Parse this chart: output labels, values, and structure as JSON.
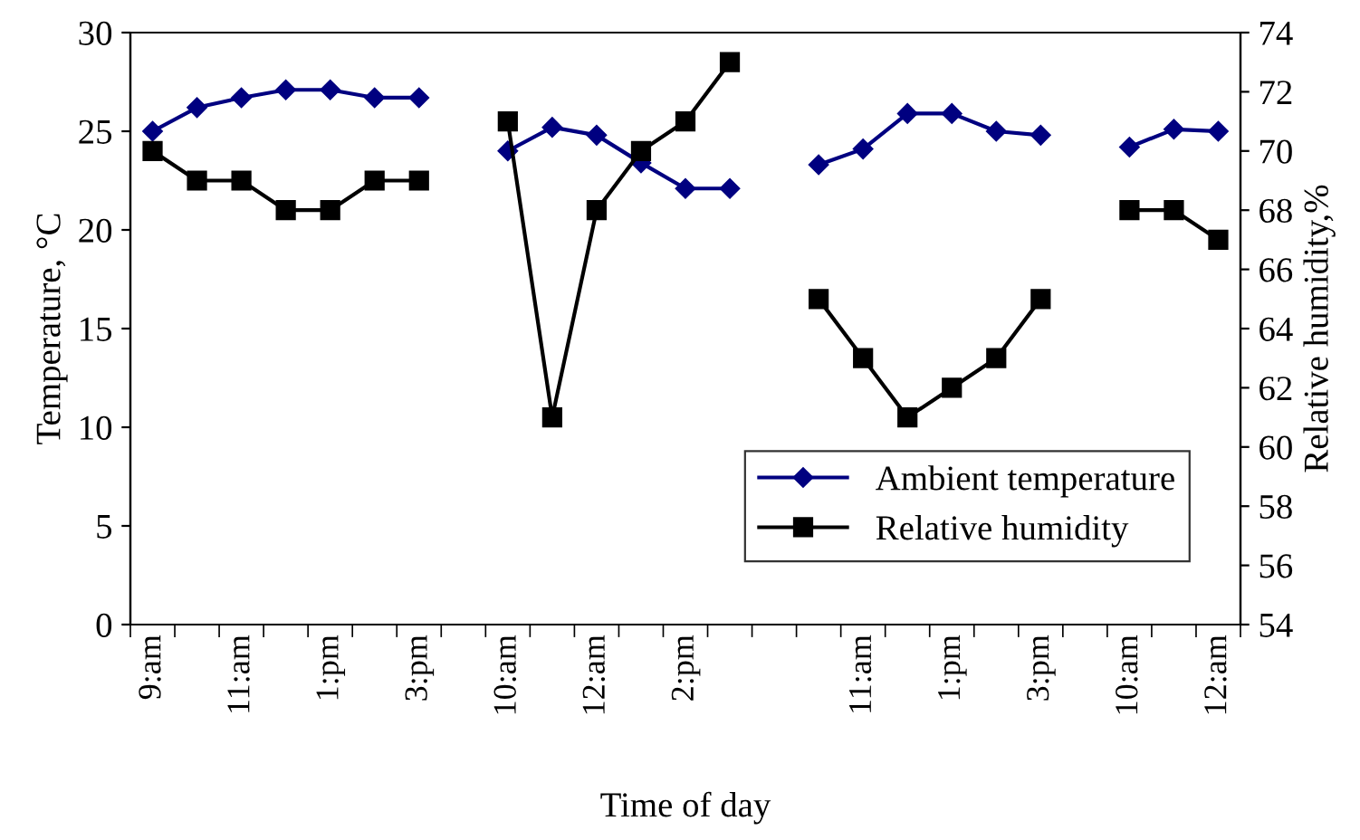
{
  "chart_data": {
    "type": "line",
    "xlabel": "Time of day",
    "ylabel": "Temperature, °C",
    "y2label": "Relative humidity,%",
    "categories": [
      "9:am",
      null,
      "11:am",
      null,
      "1:pm",
      null,
      "3:pm",
      null,
      "10:am",
      null,
      "12:am",
      null,
      "2:pm",
      null,
      null,
      null,
      "11:am",
      null,
      "1:pm",
      null,
      "3:pm",
      null,
      "10:am",
      null,
      "12:am"
    ],
    "series": [
      {
        "name": "Ambient temperature",
        "color": "#000080",
        "marker": "diamond",
        "axis": "y",
        "values": [
          25.0,
          26.2,
          26.7,
          27.1,
          27.1,
          26.7,
          26.7,
          null,
          24.0,
          25.2,
          24.8,
          23.4,
          22.1,
          22.1,
          null,
          23.3,
          24.1,
          25.9,
          25.9,
          25.0,
          24.8,
          null,
          24.2,
          25.1,
          25.0
        ]
      },
      {
        "name": "Relative humidity",
        "color": "#000000",
        "marker": "square",
        "axis": "y2",
        "values": [
          70,
          69,
          69,
          68,
          68,
          69,
          69,
          null,
          71,
          61,
          68,
          70,
          71,
          73,
          null,
          65,
          63,
          61,
          62,
          63,
          65,
          null,
          68,
          68,
          67
        ]
      }
    ],
    "ylim": [
      0,
      30
    ],
    "yticks": [
      0,
      5,
      10,
      15,
      20,
      25,
      30
    ],
    "y2lim": [
      54,
      74
    ],
    "y2ticks": [
      54,
      56,
      58,
      60,
      62,
      64,
      66,
      68,
      70,
      72,
      74
    ],
    "grid": false,
    "legend": "right",
    "line_style": "solid"
  }
}
